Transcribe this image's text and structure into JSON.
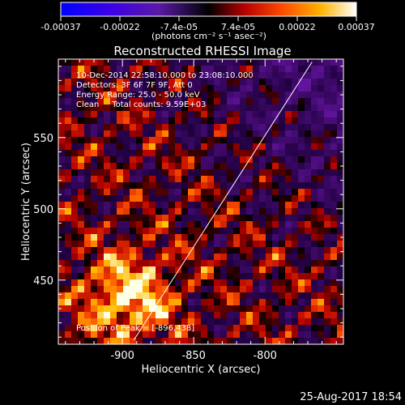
{
  "colorbar": {
    "ticks": [
      "-0.00037",
      "-0.00022",
      "-7.4e-05",
      "7.4e-05",
      "0.00022",
      "0.00037"
    ],
    "unit_label": "(photons cm⁻² s⁻¹ asec⁻²)"
  },
  "chart_data": {
    "type": "heatmap",
    "title": "Reconstructed RHESSI Image",
    "xlabel": "Heliocentric X (arcsec)",
    "ylabel": "Heliocentric Y (arcsec)",
    "xlim": [
      -945,
      -745
    ],
    "ylim": [
      405,
      605
    ],
    "x_ticks": [
      -900,
      -850,
      -800
    ],
    "y_ticks": [
      450,
      500,
      550
    ],
    "color_range": [
      -0.00037,
      0.00037
    ],
    "annotations": [
      "10-Dec-2014 22:58:10.000 to 23:08:10.000",
      "Detectors: 3F 6F 7F 9F, Att 0",
      "Energy Range: 25.0 - 50.0 keV",
      "Clean     Total counts: 9.59E+03"
    ],
    "peak_text": "Position of Peak = [-896,438]",
    "peak": [
      -896,
      438
    ],
    "limb_line": {
      "x": [
        -892,
        -767
      ],
      "y": [
        408,
        603
      ]
    }
  },
  "footer": {
    "timestamp": "25-Aug-2017 18:54"
  }
}
